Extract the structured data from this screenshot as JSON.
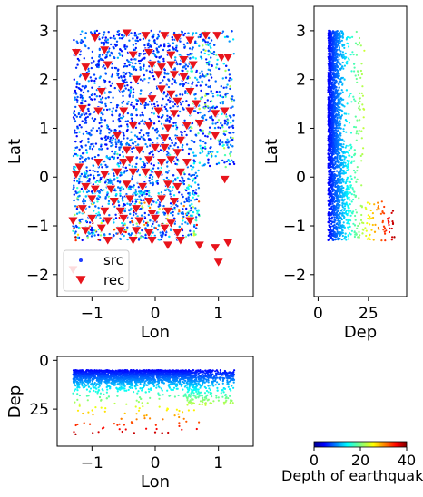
{
  "chart_data": [
    {
      "type": "scatter",
      "panel": "map",
      "xlabel": "Lon",
      "ylabel": "Lat",
      "xlim": [
        -1.55,
        1.55
      ],
      "ylim": [
        -2.45,
        3.5
      ],
      "xticks": [
        -1,
        0,
        1
      ],
      "yticks": [
        -2,
        -1,
        0,
        1,
        2,
        3
      ],
      "legend": {
        "placement": "lower-left",
        "entries": [
          "src",
          "rec"
        ]
      },
      "series": [
        {
          "name": "src",
          "marker": "dot",
          "note_color": "colored by depth (jet)"
        },
        {
          "name": "rec",
          "marker": "triangle-down",
          "color": "#e8141c",
          "points": [
            [
              -0.95,
              2.85
            ],
            [
              -0.45,
              2.95
            ],
            [
              -0.15,
              2.9
            ],
            [
              0.15,
              2.9
            ],
            [
              0.35,
              2.85
            ],
            [
              0.55,
              2.8
            ],
            [
              0.8,
              2.9
            ],
            [
              0.98,
              2.9
            ],
            [
              -1.25,
              2.55
            ],
            [
              -0.8,
              2.6
            ],
            [
              -0.35,
              2.5
            ],
            [
              -0.1,
              2.55
            ],
            [
              0.25,
              2.5
            ],
            [
              0.45,
              2.4
            ],
            [
              1.05,
              2.45
            ],
            [
              1.15,
              2.45
            ],
            [
              -1.1,
              2.25
            ],
            [
              -0.75,
              2.3
            ],
            [
              -0.05,
              2.3
            ],
            [
              0.1,
              2.25
            ],
            [
              0.25,
              2.3
            ],
            [
              0.6,
              2.3
            ],
            [
              -1.1,
              2.05
            ],
            [
              -0.3,
              2.0
            ],
            [
              0.05,
              2.1
            ],
            [
              0.3,
              2.1
            ],
            [
              0.45,
              2.05
            ],
            [
              -0.85,
              1.75
            ],
            [
              -0.55,
              1.85
            ],
            [
              0.1,
              1.8
            ],
            [
              0.25,
              1.7
            ],
            [
              0.55,
              1.75
            ],
            [
              -0.2,
              1.55
            ],
            [
              -0.05,
              1.6
            ],
            [
              0.35,
              1.55
            ],
            [
              0.65,
              1.5
            ],
            [
              -1.15,
              1.4
            ],
            [
              -0.9,
              1.35
            ],
            [
              -0.5,
              1.35
            ],
            [
              0.05,
              1.35
            ],
            [
              0.3,
              1.3
            ],
            [
              0.55,
              1.35
            ],
            [
              0.95,
              1.3
            ],
            [
              1.1,
              1.35
            ],
            [
              -0.35,
              1.05
            ],
            [
              -0.1,
              1.05
            ],
            [
              0.2,
              1.0
            ],
            [
              0.5,
              1.05
            ],
            [
              0.7,
              1.1
            ],
            [
              -0.6,
              0.85
            ],
            [
              0.15,
              0.8
            ],
            [
              0.4,
              0.75
            ],
            [
              0.95,
              0.85
            ],
            [
              -0.45,
              0.55
            ],
            [
              -0.25,
              0.55
            ],
            [
              0.0,
              0.6
            ],
            [
              0.15,
              0.6
            ],
            [
              0.35,
              0.5
            ],
            [
              -1.2,
              0.2
            ],
            [
              -0.9,
              0.3
            ],
            [
              -0.5,
              0.3
            ],
            [
              -0.4,
              0.35
            ],
            [
              -0.1,
              0.35
            ],
            [
              0.1,
              0.3
            ],
            [
              0.25,
              0.35
            ],
            [
              0.5,
              0.3
            ],
            [
              -1.25,
              0.05
            ],
            [
              -0.8,
              0.05
            ],
            [
              -0.6,
              0.1
            ],
            [
              -0.35,
              0.1
            ],
            [
              -0.15,
              0.1
            ],
            [
              0.05,
              0.05
            ],
            [
              0.4,
              0.1
            ],
            [
              1.1,
              -0.05
            ],
            [
              -1.1,
              -0.2
            ],
            [
              -0.95,
              -0.25
            ],
            [
              -0.7,
              -0.25
            ],
            [
              -0.45,
              -0.15
            ],
            [
              -0.2,
              -0.2
            ],
            [
              0.2,
              -0.15
            ],
            [
              0.35,
              -0.2
            ],
            [
              -1.0,
              -0.45
            ],
            [
              -0.65,
              -0.5
            ],
            [
              -0.4,
              -0.45
            ],
            [
              -0.1,
              -0.5
            ],
            [
              0.1,
              -0.45
            ],
            [
              0.3,
              -0.5
            ],
            [
              -1.15,
              -0.65
            ],
            [
              -0.8,
              -0.7
            ],
            [
              -0.55,
              -0.7
            ],
            [
              -0.3,
              -0.65
            ],
            [
              -0.05,
              -0.75
            ],
            [
              0.2,
              -0.7
            ],
            [
              -1.3,
              -0.9
            ],
            [
              -1.0,
              -0.85
            ],
            [
              -0.75,
              -0.9
            ],
            [
              -0.5,
              -0.85
            ],
            [
              -0.25,
              -0.9
            ],
            [
              0.0,
              -0.85
            ],
            [
              0.25,
              -0.95
            ],
            [
              0.55,
              -0.9
            ],
            [
              -1.1,
              -1.1
            ],
            [
              -0.85,
              -1.05
            ],
            [
              -0.55,
              -1.1
            ],
            [
              -0.3,
              -1.1
            ],
            [
              -0.1,
              -1.15
            ],
            [
              0.15,
              -1.05
            ],
            [
              0.35,
              -1.15
            ],
            [
              -0.75,
              -1.3
            ],
            [
              -0.35,
              -1.3
            ],
            [
              -0.05,
              -1.3
            ],
            [
              0.2,
              -1.4
            ],
            [
              0.4,
              -1.3
            ],
            [
              0.7,
              -1.4
            ],
            [
              0.95,
              -1.45
            ],
            [
              1.15,
              -1.35
            ],
            [
              1.0,
              -1.75
            ],
            [
              -1.3,
              -1.9
            ]
          ]
        }
      ]
    },
    {
      "type": "scatter",
      "panel": "lat-depth",
      "xlabel": "Dep",
      "ylabel": "Lat",
      "xlim": [
        -2,
        44
      ],
      "ylim": [
        -2.45,
        3.5
      ],
      "xticks": [
        0,
        25
      ],
      "yticks": [
        -2,
        -1,
        0,
        1,
        2,
        3
      ]
    },
    {
      "type": "scatter",
      "panel": "depth-lon",
      "xlabel": "Lon",
      "ylabel": "Dep",
      "xlim": [
        -1.55,
        1.55
      ],
      "ylim": [
        44,
        -2
      ],
      "xticks": [
        -1,
        0,
        1
      ],
      "yticks": [
        0,
        25
      ]
    },
    {
      "type": "colorbar",
      "colormap": "jet",
      "label": "Depth of earthquak",
      "range": [
        0,
        40
      ],
      "ticks": [
        0,
        20,
        40
      ]
    }
  ]
}
